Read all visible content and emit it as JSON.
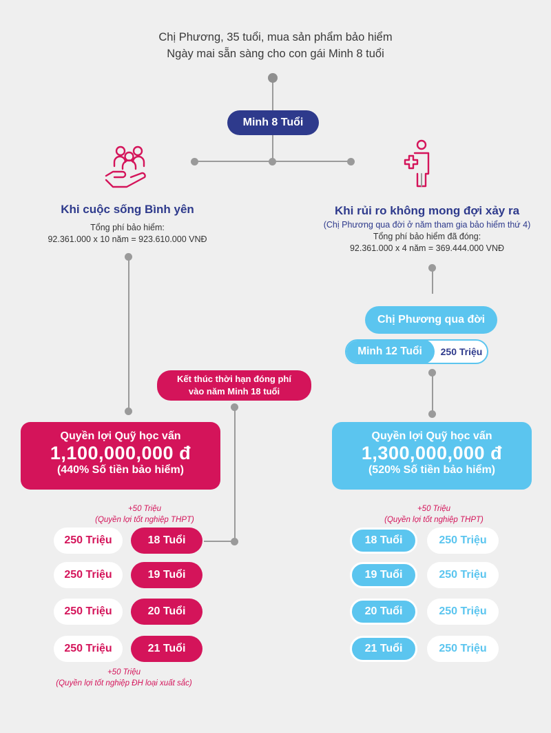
{
  "intro": {
    "line1": "Chị Phương, 35 tuổi, mua sản phẩm bảo hiểm",
    "line2": "Ngày mai sẵn sàng cho con gái Minh 8 tuổi"
  },
  "root_pill": "Minh 8 Tuổi",
  "left": {
    "title": "Khi cuộc sống Bình yên",
    "fee_label": "Tổng phí bảo hiểm:",
    "fee_calc": "92.361.000 x 10 năm = 923.610.000 VNĐ",
    "end_note_line1": "Kết thúc thời hạn đóng phí",
    "end_note_line2": "vào năm Minh 18 tuổi",
    "card": {
      "title": "Quyền lợi Quỹ học vấn",
      "amount": "1,100,000,000 đ",
      "percent": "(440% Số tiền bảo hiểm)"
    },
    "bonus_top": {
      "line1": "+50 Triệu",
      "line2": "(Quyền lợi tốt nghiệp THPT)"
    },
    "bonus_bottom": {
      "line1": "+50 Triệu",
      "line2": "(Quyền lợi tốt nghiệp ĐH loại xuất sắc)"
    },
    "rows": [
      {
        "amount": "250 Triệu",
        "age": "18 Tuổi"
      },
      {
        "amount": "250 Triệu",
        "age": "19 Tuổi"
      },
      {
        "amount": "250 Triệu",
        "age": "20 Tuổi"
      },
      {
        "amount": "250 Triệu",
        "age": "21 Tuổi"
      }
    ]
  },
  "right": {
    "title": "Khi rủi ro không mong đợi xảy ra",
    "subtitle": "(Chị Phương qua đời ở năm tham gia bảo hiểm thứ 4)",
    "fee_label": "Tổng phí bảo hiểm đã đóng:",
    "fee_calc": "92.361.000 x 4 năm = 369.444.000 VNĐ",
    "event_pill": "Chị Phương qua đời",
    "payout_age": "Minh 12 Tuổi",
    "payout_amount": "250 Triệu",
    "card": {
      "title": "Quyền lợi Quỹ học vấn",
      "amount": "1,300,000,000 đ",
      "percent": "(520% Số tiền bảo hiểm)"
    },
    "bonus_top": {
      "line1": "+50 Triệu",
      "line2": "(Quyền lợi tốt nghiệp THPT)"
    },
    "rows": [
      {
        "age": "18 Tuổi",
        "amount": "250 Triệu"
      },
      {
        "age": "19 Tuổi",
        "amount": "250 Triệu"
      },
      {
        "age": "20 Tuổi",
        "amount": "250 Triệu"
      },
      {
        "age": "21 Tuổi",
        "amount": "250 Triệu"
      }
    ]
  },
  "icons": {
    "left": "family-hand-icon",
    "right": "hospital-person-icon"
  },
  "colors": {
    "magenta": "#d4145a",
    "navy": "#2e3a8c",
    "sky": "#5bc5ef",
    "line": "#9a9a9a"
  }
}
